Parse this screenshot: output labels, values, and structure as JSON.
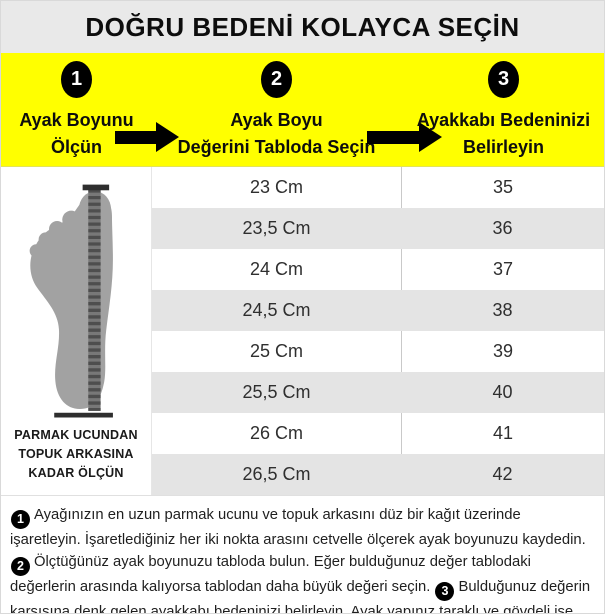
{
  "title": "DOĞRU BEDENİ KOLAYCA SEÇİN",
  "steps": [
    {
      "number": "1",
      "line1": "Ayak Boyunu",
      "line2": "Ölçün"
    },
    {
      "number": "2",
      "line1": "Ayak Boyu",
      "line2": "Değerini Tabloda Seçin"
    },
    {
      "number": "3",
      "line1": "Ayakkabı Bedeninizi",
      "line2": "Belirleyin"
    }
  ],
  "foot_panel": {
    "illustration": "foot-outline-with-measuring-tape",
    "caption_lines": [
      "PARMAK UCUNDAN",
      "TOPUK ARKASINA",
      "KADAR ÖLÇÜN"
    ]
  },
  "size_table": {
    "rows": [
      {
        "length": "23 Cm",
        "size": "35"
      },
      {
        "length": "23,5 Cm",
        "size": "36"
      },
      {
        "length": "24 Cm",
        "size": "37"
      },
      {
        "length": "24,5 Cm",
        "size": "38"
      },
      {
        "length": "25 Cm",
        "size": "39"
      },
      {
        "length": "25,5 Cm",
        "size": "40"
      },
      {
        "length": "26 Cm",
        "size": "41"
      },
      {
        "length": "26,5 Cm",
        "size": "42"
      }
    ]
  },
  "instructions": {
    "parts": [
      {
        "marker": "1"
      },
      {
        "text": "Ayağınızın en uzun parmak ucunu ve topuk arkasını düz bir kağıt üzerinde işaretleyin. İşaretlediğiniz her iki nokta arasını cetvelle ölçerek ayak boyunuzu kaydedin. "
      },
      {
        "marker": "2"
      },
      {
        "text": "Ölçtüğünüz ayak boyunuzu tabloda bulun. Eğer bulduğunuz değer tablodaki değerlerin arasında kalıyorsa tablodan daha büyük değeri seçin. "
      },
      {
        "marker": "3"
      },
      {
        "text": "Bulduğunuz değerin karşısına denk gelen ayakkabı bedeninizi belirleyin. Ayak yapınız taraklı ve gövdeli ise bir üst bedeni tercih etmenizi öneririz."
      }
    ]
  },
  "colors": {
    "accent_yellow": "#ffff00",
    "title_bar_bg": "#e9e9e9",
    "row_alt_gray": "#e4e4e4",
    "step_circle_black": "#000000",
    "foot_gray": "#a2a2a2",
    "ruler_gray": "#787878"
  }
}
